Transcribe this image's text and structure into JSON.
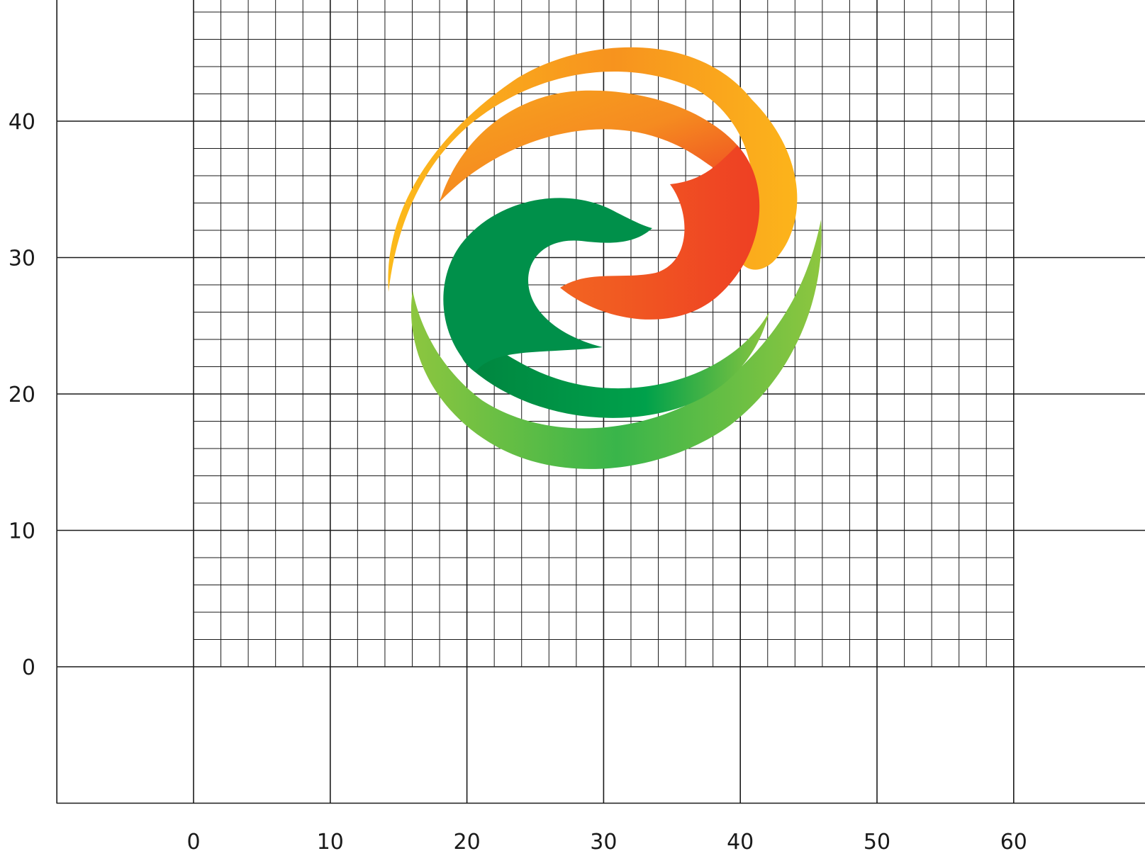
{
  "chart_data": {
    "type": "diagram",
    "title": "",
    "xlabel": "",
    "ylabel": "",
    "x_ticks": [
      "0",
      "10",
      "20",
      "30",
      "40",
      "50",
      "60"
    ],
    "y_ticks": [
      "0",
      "10",
      "20",
      "30",
      "40"
    ],
    "xlim": [
      -10,
      70
    ],
    "ylim": [
      -10,
      49
    ],
    "grid": true,
    "fine_grid_step": 2,
    "fine_grid_x_range": [
      0,
      60
    ],
    "fine_grid_y_range": [
      0,
      49
    ],
    "emblem": {
      "description": "circular swirl emblem of two interlocking crescents",
      "center": [
        30,
        27
      ],
      "radius": 16,
      "colors": {
        "yellow": "#FCBA1B",
        "orange": "#F58B20",
        "red": "#EE3F23",
        "light_green": "#8DC63F",
        "green": "#00A14B",
        "dark_green": "#00843F"
      }
    }
  }
}
